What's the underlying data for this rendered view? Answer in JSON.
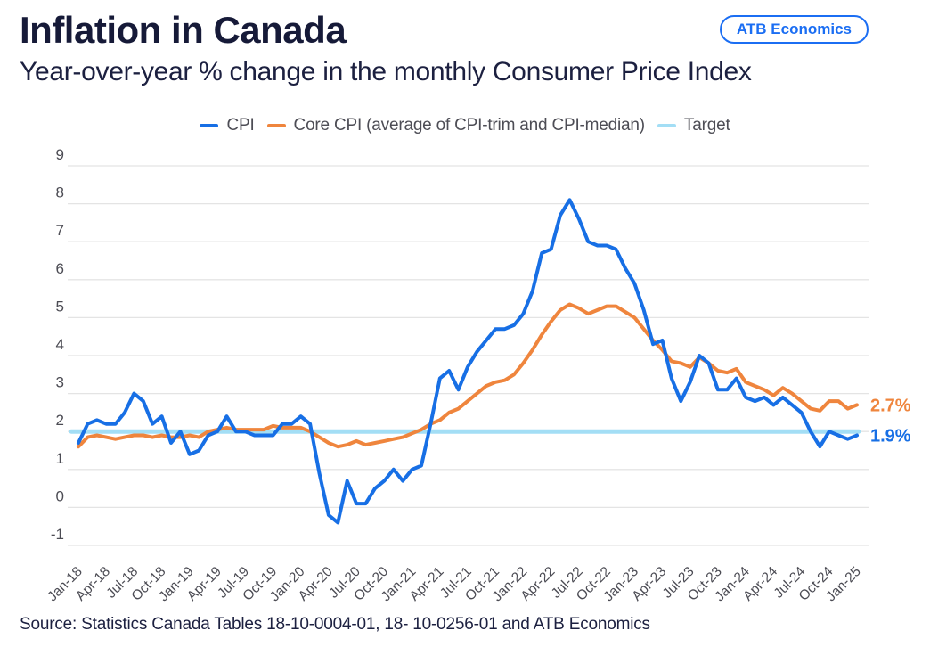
{
  "header": {
    "title": "Inflation in Canada",
    "subtitle": "Year-over-year % change in the monthly Consumer Price Index",
    "badge": "ATB Economics"
  },
  "source": "Source: Statistics Canada Tables 18-10-0004-01, 18- 10-0256-01 and ATB Economics",
  "chart_data": {
    "type": "line",
    "title": "Inflation in Canada",
    "subtitle": "Year-over-year % change in the monthly Consumer Price Index",
    "x_frequency": "monthly",
    "x_start": "Jan-2018",
    "x_end": "Jan-2025",
    "tick_every_n_months": 3,
    "x_tick_labels": [
      "Jan-18",
      "Apr-18",
      "Jul-18",
      "Oct-18",
      "Jan-19",
      "Apr-19",
      "Jul-19",
      "Oct-19",
      "Jan-20",
      "Apr-20",
      "Jul-20",
      "Oct-20",
      "Jan-21",
      "Apr-21",
      "Jul-21",
      "Oct-21",
      "Jan-22",
      "Apr-22",
      "Jul-22",
      "Oct-22",
      "Jan-23",
      "Apr-23",
      "Jul-23",
      "Oct-23",
      "Jan-24",
      "Apr-24",
      "Jul-24",
      "Oct-24",
      "Jan-25"
    ],
    "y_ticks": [
      9,
      8,
      7,
      6,
      5,
      4,
      3,
      2,
      1,
      0,
      -1
    ],
    "ylim": [
      -1,
      9
    ],
    "grid": "horizontal",
    "legend_position": "top",
    "target_value": 2,
    "series": [
      {
        "name": "Target",
        "color": "#a3def5",
        "end_label": "",
        "constant": 2
      },
      {
        "name": "Core CPI (average of CPI-trim and CPI-median)",
        "color": "#ef853d",
        "end_label": "2.7%",
        "values": [
          1.6,
          1.85,
          1.9,
          1.85,
          1.8,
          1.85,
          1.9,
          1.9,
          1.85,
          1.9,
          1.85,
          1.85,
          1.9,
          1.85,
          2.0,
          2.05,
          2.1,
          2.05,
          2.05,
          2.05,
          2.05,
          2.15,
          2.1,
          2.1,
          2.1,
          2.0,
          1.85,
          1.7,
          1.6,
          1.65,
          1.75,
          1.65,
          1.7,
          1.75,
          1.8,
          1.85,
          1.95,
          2.05,
          2.2,
          2.3,
          2.5,
          2.6,
          2.8,
          3.0,
          3.2,
          3.3,
          3.35,
          3.5,
          3.8,
          4.15,
          4.55,
          4.9,
          5.2,
          5.35,
          5.25,
          5.1,
          5.2,
          5.3,
          5.3,
          5.15,
          5.0,
          4.7,
          4.4,
          4.15,
          3.85,
          3.8,
          3.7,
          3.95,
          3.8,
          3.6,
          3.55,
          3.65,
          3.3,
          3.2,
          3.1,
          2.95,
          3.15,
          3.0,
          2.8,
          2.6,
          2.55,
          2.8,
          2.8,
          2.6,
          2.7
        ]
      },
      {
        "name": "CPI",
        "color": "#176fe5",
        "end_label": "1.9%",
        "values": [
          1.7,
          2.2,
          2.3,
          2.2,
          2.2,
          2.5,
          3.0,
          2.8,
          2.2,
          2.4,
          1.7,
          2.0,
          1.4,
          1.5,
          1.9,
          2.0,
          2.4,
          2.0,
          2.0,
          1.9,
          1.9,
          1.9,
          2.2,
          2.2,
          2.4,
          2.2,
          0.9,
          -0.2,
          -0.4,
          0.7,
          0.1,
          0.1,
          0.5,
          0.7,
          1.0,
          0.7,
          1.0,
          1.1,
          2.2,
          3.4,
          3.6,
          3.1,
          3.7,
          4.1,
          4.4,
          4.7,
          4.7,
          4.8,
          5.1,
          5.7,
          6.7,
          6.8,
          7.7,
          8.1,
          7.6,
          7.0,
          6.9,
          6.9,
          6.8,
          6.3,
          5.9,
          5.2,
          4.3,
          4.4,
          3.4,
          2.8,
          3.3,
          4.0,
          3.8,
          3.1,
          3.1,
          3.4,
          2.9,
          2.8,
          2.9,
          2.7,
          2.9,
          2.7,
          2.5,
          2.0,
          1.6,
          2.0,
          1.9,
          1.8,
          1.9
        ]
      }
    ],
    "legend_order": [
      "CPI",
      "Core CPI (average of CPI-trim and CPI-median)",
      "Target"
    ]
  }
}
